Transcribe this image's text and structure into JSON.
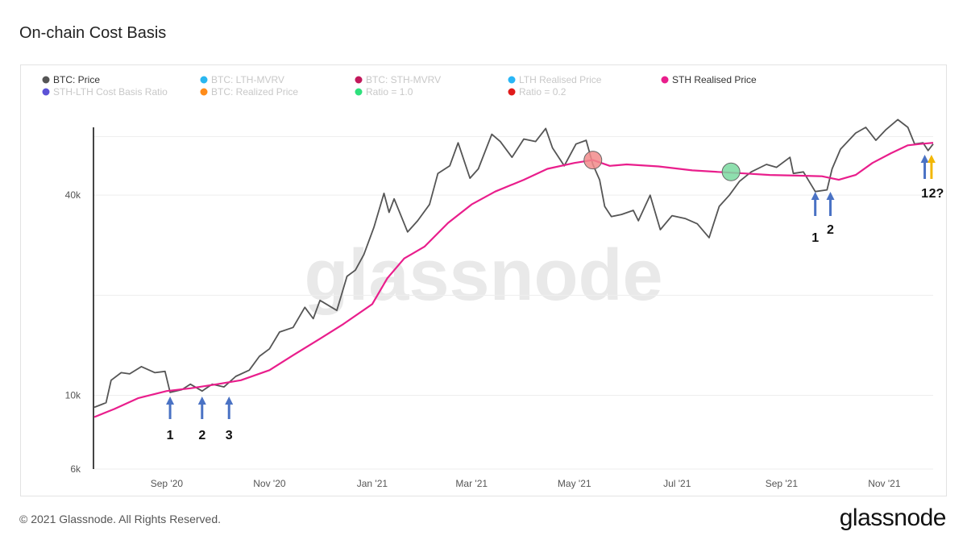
{
  "title": "On-chain Cost Basis",
  "footer": {
    "copyright": "© 2021 Glassnode. All Rights Reserved.",
    "logo": "glassnode"
  },
  "watermark": "glassnode",
  "chart_data": {
    "type": "line",
    "title": "On-chain Cost Basis",
    "yscale": "log",
    "ylim": [
      6000,
      80000
    ],
    "ytick_labels": [
      {
        "label": "40k",
        "value": 40000
      },
      {
        "label": "10k",
        "value": 10000
      },
      {
        "label": "6k",
        "value": 6000
      }
    ],
    "xlim": [
      "2020-07-20",
      "2021-11-30"
    ],
    "xtick_labels": [
      {
        "label": "Sep '20",
        "date": "2020-09-01"
      },
      {
        "label": "Nov '20",
        "date": "2020-11-01"
      },
      {
        "label": "Jan '21",
        "date": "2021-01-01"
      },
      {
        "label": "Mar '21",
        "date": "2021-03-01"
      },
      {
        "label": "May '21",
        "date": "2021-05-01"
      },
      {
        "label": "Jul '21",
        "date": "2021-07-01"
      },
      {
        "label": "Sep '21",
        "date": "2021-09-01"
      },
      {
        "label": "Nov '21",
        "date": "2021-11-01"
      }
    ],
    "legend": [
      {
        "name": "BTC: Price",
        "color": "#555555",
        "active": true
      },
      {
        "name": "BTC: LTH-MVRV",
        "color": "#2ab7f0",
        "active": false
      },
      {
        "name": "BTC: STH-MVRV",
        "color": "#c2185b",
        "active": false
      },
      {
        "name": "LTH Realised Price",
        "color": "#29b6f6",
        "active": false
      },
      {
        "name": "STH Realised Price",
        "color": "#e91e8c",
        "active": true
      },
      {
        "name": "STH-LTH Cost Basis Ratio",
        "color": "#5c52d6",
        "active": false
      },
      {
        "name": "BTC: Realized Price",
        "color": "#ff8c1a",
        "active": false
      },
      {
        "name": "Ratio = 1.0",
        "color": "#2ee07c",
        "active": false
      },
      {
        "name": "Ratio = 0.2",
        "color": "#e01b1b",
        "active": false
      }
    ],
    "series": [
      {
        "name": "BTC: Price",
        "color": "#555555",
        "points": [
          [
            "2020-07-20",
            9200
          ],
          [
            "2020-07-27",
            9500
          ],
          [
            "2020-07-30",
            11100
          ],
          [
            "2020-08-05",
            11700
          ],
          [
            "2020-08-10",
            11600
          ],
          [
            "2020-08-17",
            12200
          ],
          [
            "2020-08-25",
            11700
          ],
          [
            "2020-08-31",
            11800
          ],
          [
            "2020-09-03",
            10200
          ],
          [
            "2020-09-10",
            10400
          ],
          [
            "2020-09-15",
            10800
          ],
          [
            "2020-09-22",
            10300
          ],
          [
            "2020-09-28",
            10800
          ],
          [
            "2020-10-05",
            10600
          ],
          [
            "2020-10-12",
            11400
          ],
          [
            "2020-10-20",
            11900
          ],
          [
            "2020-10-26",
            13100
          ],
          [
            "2020-11-01",
            13800
          ],
          [
            "2020-11-07",
            15500
          ],
          [
            "2020-11-15",
            16000
          ],
          [
            "2020-11-22",
            18400
          ],
          [
            "2020-11-27",
            17000
          ],
          [
            "2020-12-01",
            19300
          ],
          [
            "2020-12-11",
            18000
          ],
          [
            "2020-12-17",
            22800
          ],
          [
            "2020-12-22",
            23800
          ],
          [
            "2020-12-27",
            26500
          ],
          [
            "2021-01-02",
            32000
          ],
          [
            "2021-01-08",
            40500
          ],
          [
            "2021-01-11",
            35500
          ],
          [
            "2021-01-14",
            39000
          ],
          [
            "2021-01-22",
            31000
          ],
          [
            "2021-01-28",
            33500
          ],
          [
            "2021-02-04",
            37500
          ],
          [
            "2021-02-09",
            46500
          ],
          [
            "2021-02-16",
            49000
          ],
          [
            "2021-02-21",
            57500
          ],
          [
            "2021-02-28",
            45000
          ],
          [
            "2021-03-05",
            48000
          ],
          [
            "2021-03-13",
            61000
          ],
          [
            "2021-03-18",
            58000
          ],
          [
            "2021-03-25",
            52000
          ],
          [
            "2021-04-01",
            59000
          ],
          [
            "2021-04-08",
            58000
          ],
          [
            "2021-04-14",
            63500
          ],
          [
            "2021-04-18",
            55500
          ],
          [
            "2021-04-25",
            49000
          ],
          [
            "2021-05-02",
            57000
          ],
          [
            "2021-05-08",
            58500
          ],
          [
            "2021-05-12",
            49500
          ],
          [
            "2021-05-16",
            44500
          ],
          [
            "2021-05-19",
            37000
          ],
          [
            "2021-05-23",
            34500
          ],
          [
            "2021-05-29",
            35000
          ],
          [
            "2021-06-05",
            36000
          ],
          [
            "2021-06-08",
            33500
          ],
          [
            "2021-06-15",
            40000
          ],
          [
            "2021-06-21",
            31500
          ],
          [
            "2021-06-28",
            34700
          ],
          [
            "2021-07-06",
            34000
          ],
          [
            "2021-07-13",
            32800
          ],
          [
            "2021-07-20",
            29800
          ],
          [
            "2021-07-26",
            37000
          ],
          [
            "2021-08-01",
            40000
          ],
          [
            "2021-08-07",
            44000
          ],
          [
            "2021-08-14",
            47000
          ],
          [
            "2021-08-23",
            49500
          ],
          [
            "2021-08-29",
            48500
          ],
          [
            "2021-09-06",
            52000
          ],
          [
            "2021-09-08",
            46500
          ],
          [
            "2021-09-14",
            47000
          ],
          [
            "2021-09-21",
            41000
          ],
          [
            "2021-09-28",
            41500
          ],
          [
            "2021-10-01",
            48000
          ],
          [
            "2021-10-06",
            55000
          ],
          [
            "2021-10-15",
            61500
          ],
          [
            "2021-10-21",
            64000
          ],
          [
            "2021-10-27",
            58500
          ],
          [
            "2021-11-02",
            63000
          ],
          [
            "2021-11-09",
            67500
          ],
          [
            "2021-11-15",
            64000
          ],
          [
            "2021-11-19",
            57000
          ],
          [
            "2021-11-24",
            57500
          ],
          [
            "2021-11-27",
            54500
          ],
          [
            "2021-11-30",
            57000
          ]
        ]
      },
      {
        "name": "STH Realised Price",
        "color": "#e91e8c",
        "points": [
          [
            "2020-07-20",
            8600
          ],
          [
            "2020-08-01",
            9100
          ],
          [
            "2020-08-15",
            9800
          ],
          [
            "2020-09-01",
            10300
          ],
          [
            "2020-09-15",
            10500
          ],
          [
            "2020-10-01",
            10800
          ],
          [
            "2020-10-15",
            11100
          ],
          [
            "2020-11-01",
            11900
          ],
          [
            "2020-11-15",
            13200
          ],
          [
            "2020-12-01",
            14800
          ],
          [
            "2020-12-15",
            16400
          ],
          [
            "2021-01-01",
            18800
          ],
          [
            "2021-01-10",
            22500
          ],
          [
            "2021-01-20",
            25800
          ],
          [
            "2021-02-01",
            28000
          ],
          [
            "2021-02-15",
            33000
          ],
          [
            "2021-03-01",
            37500
          ],
          [
            "2021-03-15",
            41000
          ],
          [
            "2021-04-01",
            44500
          ],
          [
            "2021-04-15",
            48000
          ],
          [
            "2021-05-01",
            50000
          ],
          [
            "2021-05-12",
            51000
          ],
          [
            "2021-05-22",
            49000
          ],
          [
            "2021-06-01",
            49500
          ],
          [
            "2021-06-20",
            48800
          ],
          [
            "2021-07-10",
            47500
          ],
          [
            "2021-07-25",
            47000
          ],
          [
            "2021-08-10",
            46500
          ],
          [
            "2021-08-25",
            46000
          ],
          [
            "2021-09-10",
            45800
          ],
          [
            "2021-09-25",
            45600
          ],
          [
            "2021-10-05",
            44500
          ],
          [
            "2021-10-15",
            46000
          ],
          [
            "2021-10-25",
            50000
          ],
          [
            "2021-11-05",
            53500
          ],
          [
            "2021-11-15",
            56500
          ],
          [
            "2021-11-22",
            57000
          ],
          [
            "2021-11-30",
            57500
          ]
        ]
      }
    ],
    "highlight_circles": [
      {
        "date": "2021-05-12",
        "value": 51000,
        "color": "#f28b8b"
      },
      {
        "date": "2021-08-02",
        "value": 47000,
        "color": "#7ad9a0"
      }
    ],
    "annotations": [
      {
        "label": "1",
        "date": "2020-09-03",
        "arrow_color": "#4a72c4"
      },
      {
        "label": "2",
        "date": "2020-09-22",
        "arrow_color": "#4a72c4"
      },
      {
        "label": "3",
        "date": "2020-10-08",
        "arrow_color": "#4a72c4"
      },
      {
        "label": "1",
        "date": "2021-09-21",
        "arrow_color": "#4a72c4"
      },
      {
        "label": "2",
        "date": "2021-09-30",
        "arrow_color": "#4a72c4"
      },
      {
        "label": "1",
        "date": "2021-11-25",
        "arrow_color": "#4a72c4"
      },
      {
        "label": "2?",
        "date": "2021-11-29",
        "arrow_color": "#f2b705"
      }
    ]
  }
}
